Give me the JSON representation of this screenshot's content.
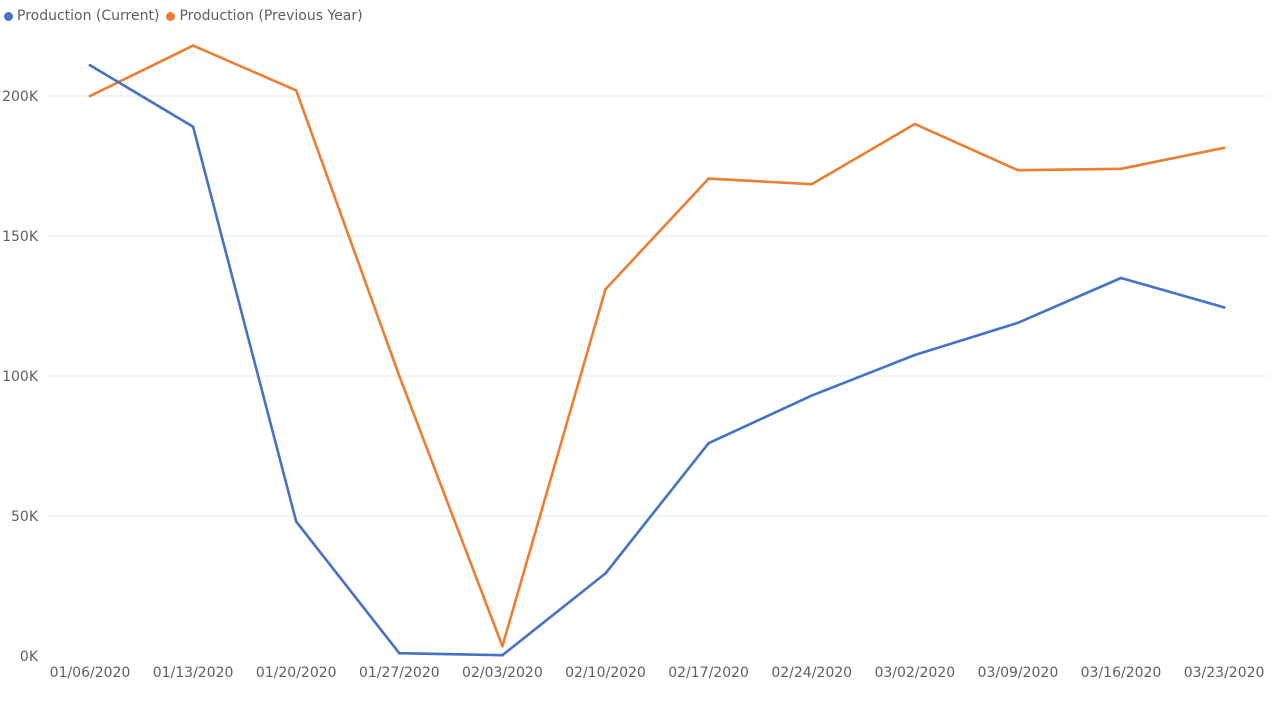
{
  "chart_data": {
    "type": "line",
    "categories": [
      "01/06/2020",
      "01/13/2020",
      "01/20/2020",
      "01/27/2020",
      "02/03/2020",
      "02/10/2020",
      "02/17/2020",
      "02/24/2020",
      "03/02/2020",
      "03/09/2020",
      "03/16/2020",
      "03/23/2020"
    ],
    "series": [
      {
        "name": "Production (Current)",
        "color": "#4472C4",
        "values": [
          211000,
          189000,
          48000,
          1000,
          300,
          29500,
          76000,
          93000,
          107500,
          119000,
          135000,
          124500
        ]
      },
      {
        "name": "Production (Previous Year)",
        "color": "#ED7D31",
        "values": [
          200000,
          218000,
          202000,
          100000,
          3500,
          131000,
          170500,
          168500,
          190000,
          173500,
          174000,
          181500
        ]
      }
    ],
    "y_ticks": [
      0,
      50000,
      100000,
      150000,
      200000
    ],
    "y_tick_labels": [
      "0K",
      "50K",
      "100K",
      "150K",
      "200K"
    ],
    "ylim": [
      0,
      200000
    ],
    "grid": true,
    "legend_position": "top-left"
  }
}
